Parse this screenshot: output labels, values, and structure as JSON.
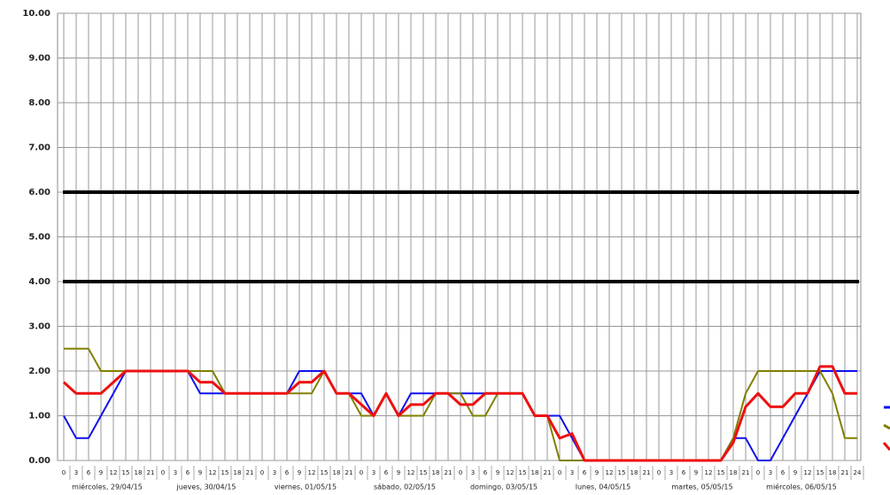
{
  "chart_data": {
    "type": "line",
    "categories": [
      "0",
      "3",
      "6",
      "9",
      "12",
      "15",
      "18",
      "21",
      "0",
      "3",
      "6",
      "9",
      "12",
      "15",
      "18",
      "21",
      "0",
      "3",
      "6",
      "9",
      "12",
      "15",
      "18",
      "21",
      "0",
      "3",
      "6",
      "9",
      "12",
      "15",
      "18",
      "21",
      "0",
      "3",
      "6",
      "9",
      "12",
      "15",
      "18",
      "21",
      "0",
      "3",
      "6",
      "9",
      "12",
      "15",
      "18",
      "21",
      "0",
      "3",
      "6",
      "9",
      "12",
      "15",
      "18",
      "21",
      "0",
      "3",
      "6",
      "9",
      "12",
      "15",
      "18",
      "21",
      "24"
    ],
    "day_labels": [
      "miércoles, 29/04/15",
      "jueves, 30/04/15",
      "viernes, 01/05/15",
      "sábado, 02/05/15",
      "domingo, 03/05/15",
      "lunes, 04/05/15",
      "martes, 05/05/15",
      "miércoles, 06/05/15"
    ],
    "series": [
      {
        "color": "#1010ee",
        "values": [
          1.0,
          0.5,
          0.5,
          1.0,
          1.5,
          2.0,
          2.0,
          2.0,
          2.0,
          2.0,
          2.0,
          1.5,
          1.5,
          1.5,
          1.5,
          1.5,
          1.5,
          1.5,
          1.5,
          2.0,
          2.0,
          2.0,
          1.5,
          1.5,
          1.5,
          1.0,
          1.5,
          1.0,
          1.5,
          1.5,
          1.5,
          1.5,
          1.5,
          1.5,
          1.5,
          1.5,
          1.5,
          1.5,
          1.0,
          1.0,
          1.0,
          0.5,
          0,
          0,
          0,
          0,
          0,
          0,
          0,
          0,
          0,
          0,
          0,
          0,
          0.5,
          0.5,
          0,
          0,
          0.5,
          1.0,
          1.5,
          2.0,
          2.0,
          2.0,
          2.0
        ]
      },
      {
        "color": "#808000",
        "values": [
          2.5,
          2.5,
          2.5,
          2.0,
          2.0,
          2.0,
          2.0,
          2.0,
          2.0,
          2.0,
          2.0,
          2.0,
          2.0,
          1.5,
          1.5,
          1.5,
          1.5,
          1.5,
          1.5,
          1.5,
          1.5,
          2.0,
          1.5,
          1.5,
          1.0,
          1.0,
          1.5,
          1.0,
          1.0,
          1.0,
          1.5,
          1.5,
          1.5,
          1.0,
          1.0,
          1.5,
          1.5,
          1.5,
          1.0,
          1.0,
          0,
          0,
          0,
          0,
          0,
          0,
          0,
          0,
          0,
          0,
          0,
          0,
          0,
          0,
          0.5,
          1.5,
          2.0,
          2.0,
          2.0,
          2.0,
          2.0,
          2.0,
          1.5,
          0.5,
          0.5
        ]
      },
      {
        "color": "#ee1010",
        "values": [
          1.75,
          1.5,
          1.5,
          1.5,
          1.75,
          2.0,
          2.0,
          2.0,
          2.0,
          2.0,
          2.0,
          1.75,
          1.75,
          1.5,
          1.5,
          1.5,
          1.5,
          1.5,
          1.5,
          1.75,
          1.75,
          2.0,
          1.5,
          1.5,
          1.25,
          1.0,
          1.5,
          1.0,
          1.25,
          1.25,
          1.5,
          1.5,
          1.25,
          1.25,
          1.5,
          1.5,
          1.5,
          1.5,
          1.0,
          1.0,
          0.5,
          0.6,
          0,
          0,
          0,
          0,
          0,
          0,
          0,
          0,
          0,
          0,
          0,
          0,
          0.4,
          1.2,
          1.5,
          1.2,
          1.2,
          1.5,
          1.5,
          2.1,
          2.1,
          1.5,
          1.5
        ]
      }
    ],
    "reference_lines": [
      4,
      6
    ],
    "ylim": [
      0,
      10
    ],
    "yticks": [
      {
        "value": 0,
        "label": "0.00"
      },
      {
        "value": 1,
        "label": "1.00"
      },
      {
        "value": 2,
        "label": "2.00"
      },
      {
        "value": 3,
        "label": "3.00"
      },
      {
        "value": 4,
        "label": "4.00"
      },
      {
        "value": 5,
        "label": "5.00"
      },
      {
        "value": 6,
        "label": "6.00"
      },
      {
        "value": 7,
        "label": "7.00"
      },
      {
        "value": 8,
        "label": "8.00"
      },
      {
        "value": 9,
        "label": "9.00"
      },
      {
        "value": 10,
        "label": "10.00"
      }
    ],
    "grid": true
  }
}
